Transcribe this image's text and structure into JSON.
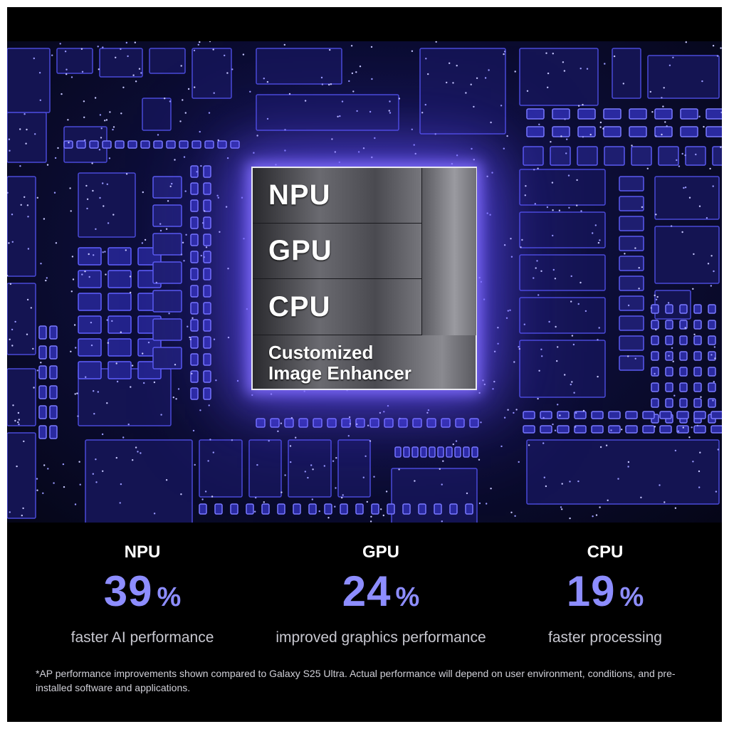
{
  "chip": {
    "blocks": [
      "NPU",
      "GPU",
      "CPU"
    ],
    "enhancer_line1": "Customized",
    "enhancer_line2": "Image Enhancer"
  },
  "stats": [
    {
      "label": "NPU",
      "value": "39",
      "unit": "%",
      "description": "faster AI performance"
    },
    {
      "label": "GPU",
      "value": "24",
      "unit": "%",
      "description": "improved graphics performance"
    },
    {
      "label": "CPU",
      "value": "19",
      "unit": "%",
      "description": "faster processing"
    }
  ],
  "footnote": "*AP performance improvements shown compared to Galaxy S25 Ultra. Actual performance will depend on user environment, conditions, and pre-installed software and applications.",
  "colors": {
    "accent": "#8d8dff",
    "glow": "#6e5aff",
    "background": "#000000"
  }
}
